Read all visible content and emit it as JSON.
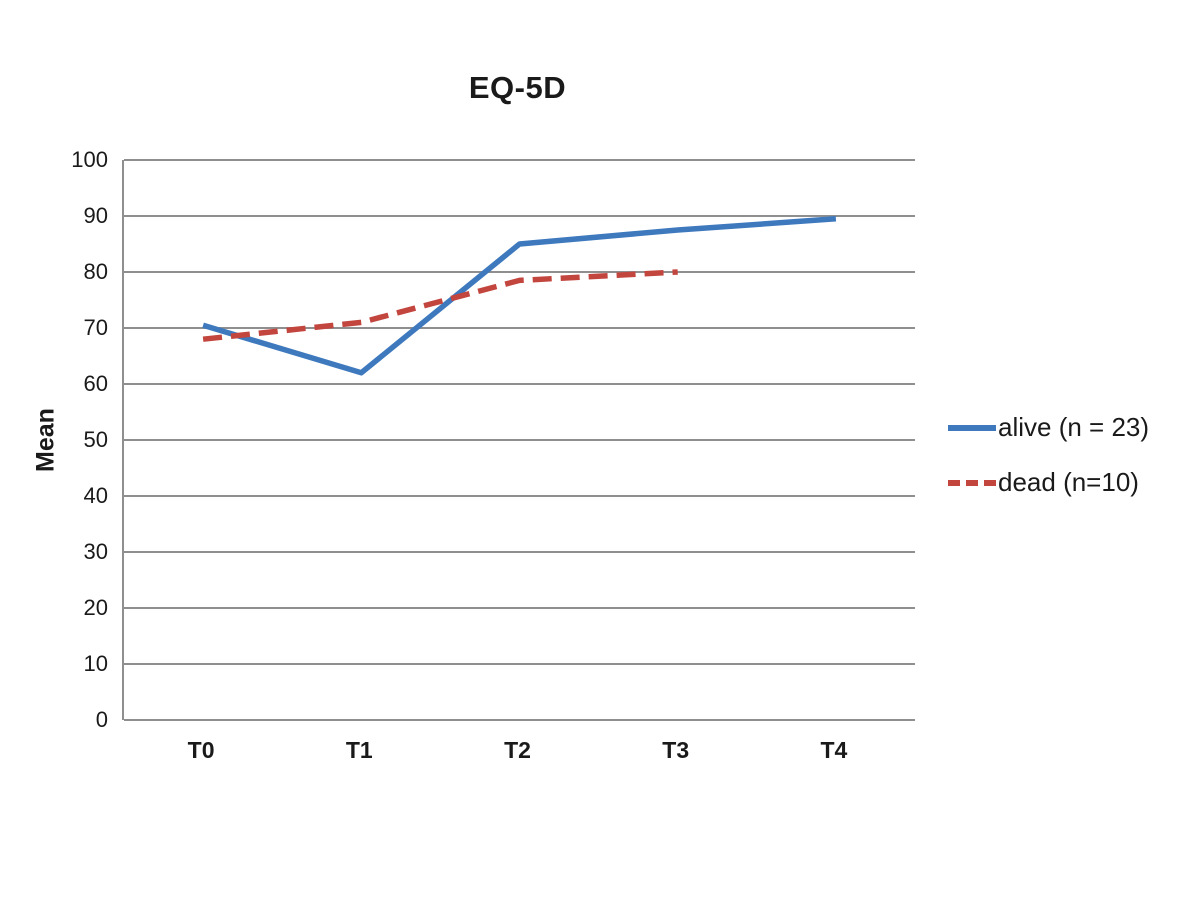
{
  "title": "EQ-5D",
  "chart_data": {
    "type": "line",
    "title": "EQ-5D",
    "categories": [
      "T0",
      "T1",
      "T2",
      "T3",
      "T4"
    ],
    "series": [
      {
        "name": "alive (n = 23)",
        "values": [
          70.5,
          62,
          85,
          87.5,
          89.5
        ],
        "color": "#3e79be",
        "line_style": "solid"
      },
      {
        "name": "dead (n=10)",
        "values": [
          68,
          71,
          78.5,
          80,
          null
        ],
        "color": "#c2453e",
        "line_style": "dashed"
      }
    ],
    "xlabel": "",
    "ylabel": "Mean",
    "ylim": [
      0,
      100
    ],
    "yticks": [
      0,
      10,
      20,
      30,
      40,
      50,
      60,
      70,
      80,
      90,
      100
    ],
    "grid": true,
    "legend_position": "right"
  },
  "colors": {
    "grid": "#8f8f8f",
    "axis": "#8f8f8f",
    "text": "#1a1a1a",
    "background": "#ffffff"
  }
}
